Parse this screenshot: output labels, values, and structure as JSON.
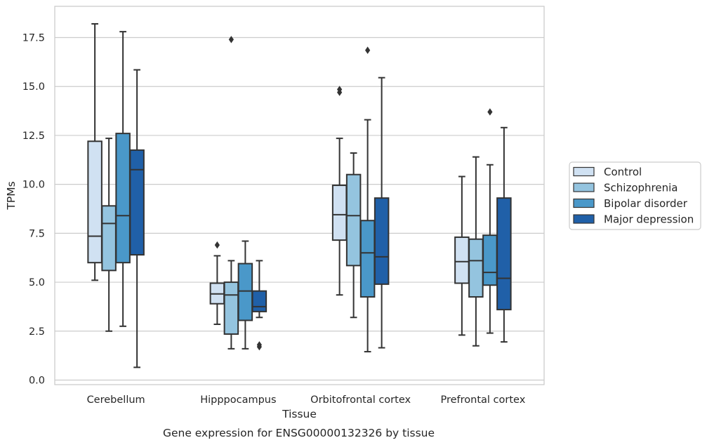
{
  "chart_data": {
    "type": "boxplot",
    "title": "",
    "caption": "Gene expression for ENSG00000132326 by tissue",
    "xlabel": "Tissue",
    "ylabel": "TPMs",
    "ylim": [
      -0.3,
      19.0
    ],
    "yticks": [
      0.0,
      2.5,
      5.0,
      7.5,
      10.0,
      12.5,
      15.0,
      17.5
    ],
    "ytick_labels": [
      "0.0",
      "2.5",
      "5.0",
      "7.5",
      "10.0",
      "12.5",
      "15.0",
      "17.5"
    ],
    "grid": "horizontal",
    "legend_position": "right",
    "categories": [
      "Cerebellum",
      "Hipppocampus",
      "Orbitofrontal cortex",
      "Prefrontal cortex"
    ],
    "series": [
      {
        "name": "Control",
        "color": "#d0e1f2",
        "boxes": [
          {
            "whislo": 5.1,
            "q1": 6.0,
            "med": 7.35,
            "q3": 12.2,
            "whishi": 18.2,
            "fliers": []
          },
          {
            "whislo": 2.85,
            "q1": 3.9,
            "med": 4.4,
            "q3": 4.95,
            "whishi": 6.35,
            "fliers": [
              6.9
            ]
          },
          {
            "whislo": 4.35,
            "q1": 7.15,
            "med": 8.45,
            "q3": 9.95,
            "whishi": 12.35,
            "fliers": [
              14.7,
              14.85
            ]
          },
          {
            "whislo": 2.3,
            "q1": 4.95,
            "med": 6.05,
            "q3": 7.3,
            "whishi": 10.4,
            "fliers": []
          }
        ]
      },
      {
        "name": "Schizophrenia",
        "color": "#94c4df",
        "boxes": [
          {
            "whislo": 2.5,
            "q1": 5.6,
            "med": 8.0,
            "q3": 8.9,
            "whishi": 12.35,
            "fliers": []
          },
          {
            "whislo": 1.6,
            "q1": 2.35,
            "med": 4.35,
            "q3": 5.0,
            "whishi": 6.1,
            "fliers": [
              17.4
            ]
          },
          {
            "whislo": 3.2,
            "q1": 5.85,
            "med": 8.4,
            "q3": 10.5,
            "whishi": 11.6,
            "fliers": []
          },
          {
            "whislo": 1.75,
            "q1": 4.25,
            "med": 6.1,
            "q3": 7.2,
            "whishi": 11.4,
            "fliers": []
          }
        ]
      },
      {
        "name": "Bipolar disorder",
        "color": "#4a98c9",
        "boxes": [
          {
            "whislo": 2.75,
            "q1": 6.0,
            "med": 8.4,
            "q3": 12.6,
            "whishi": 17.8,
            "fliers": []
          },
          {
            "whislo": 1.6,
            "q1": 3.05,
            "med": 4.55,
            "q3": 5.95,
            "whishi": 7.1,
            "fliers": []
          },
          {
            "whislo": 1.45,
            "q1": 4.25,
            "med": 6.5,
            "q3": 8.15,
            "whishi": 13.3,
            "fliers": [
              16.85
            ]
          },
          {
            "whislo": 2.4,
            "q1": 4.85,
            "med": 5.5,
            "q3": 7.4,
            "whishi": 11.0,
            "fliers": [
              13.7
            ]
          }
        ]
      },
      {
        "name": "Major depression",
        "color": "#2060a8",
        "boxes": [
          {
            "whislo": 0.65,
            "q1": 6.4,
            "med": 10.75,
            "q3": 11.75,
            "whishi": 15.85,
            "fliers": []
          },
          {
            "whislo": 3.2,
            "q1": 3.5,
            "med": 3.75,
            "q3": 4.55,
            "whishi": 6.1,
            "fliers": [
              1.7,
              1.8
            ]
          },
          {
            "whislo": 1.65,
            "q1": 4.9,
            "med": 6.3,
            "q3": 9.3,
            "whishi": 15.45,
            "fliers": []
          },
          {
            "whislo": 1.95,
            "q1": 3.6,
            "med": 5.2,
            "q3": 9.3,
            "whishi": 12.9,
            "fliers": []
          }
        ]
      }
    ]
  }
}
